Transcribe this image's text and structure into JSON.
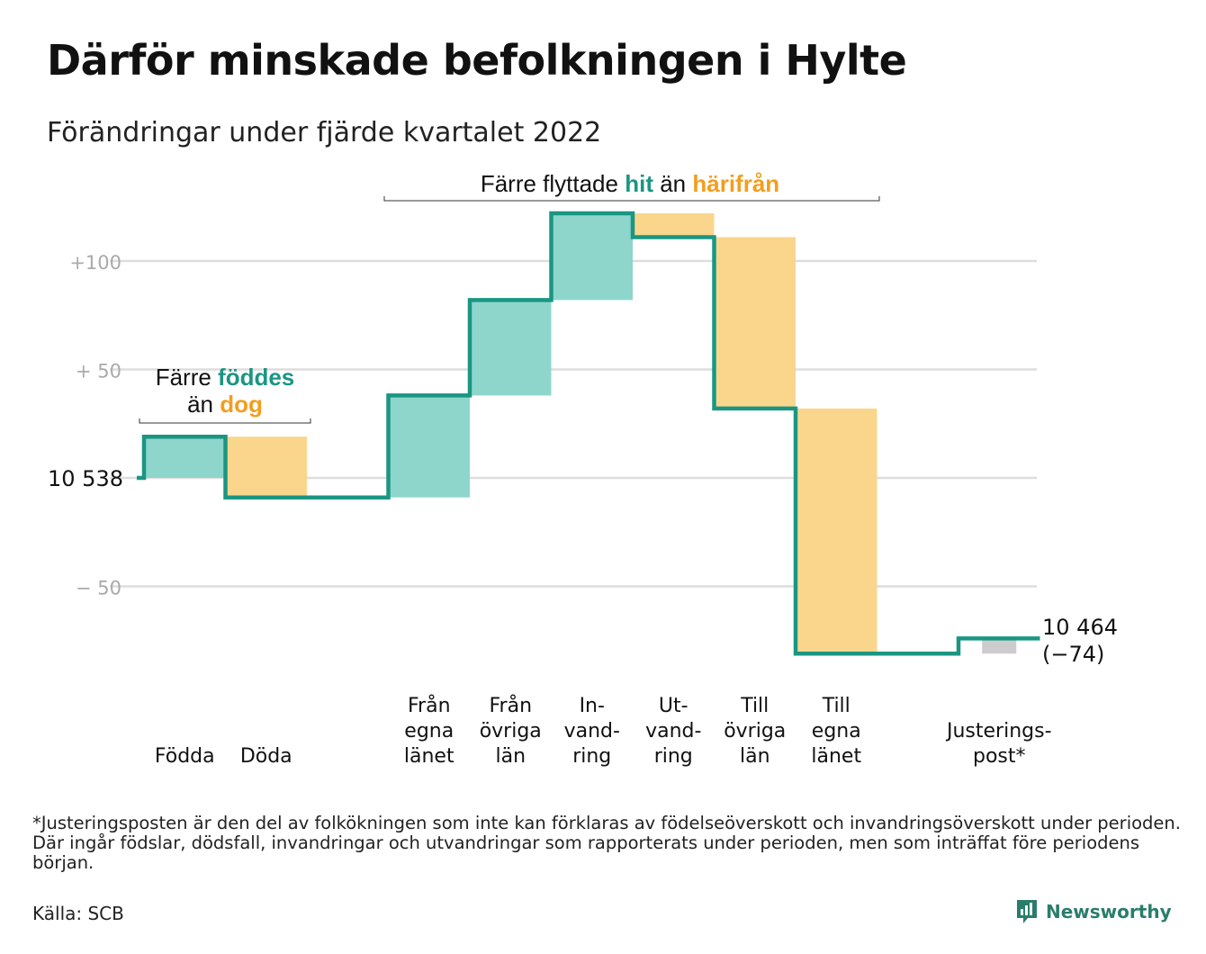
{
  "title": "Därför minskade befolkningen i Hylte",
  "subtitle": "Förändringar under fjärde kvartalet 2022",
  "colors": {
    "inflow": "#8ed6cc",
    "outflow": "#fad68c",
    "adjust": "#cccccc",
    "line": "#1a9683",
    "teal_text": "#1a9683",
    "orange_text": "#f29e1e",
    "grid": "#dddddd"
  },
  "annotations": {
    "births": {
      "pre": "Färre ",
      "teal": "föddes",
      "mid": "än ",
      "orange": "dog"
    },
    "migration": {
      "pre": "Färre flyttade ",
      "teal": "hit",
      "mid": " än ",
      "orange": "härifrån"
    }
  },
  "end_label": {
    "value": "10 464",
    "change": "(−74)"
  },
  "footnote": "*Justeringsposten är den del av folkökningen som inte kan förklaras av födelseöverskott och invandringsöverskott under perioden. Där ingår födslar, dödsfall, invandringar och utvandringar som rapporterats under perioden, men som inträffat före periodens början.",
  "source": "Källa: SCB",
  "brand": "Newsworthy",
  "chart_data": {
    "type": "waterfall",
    "start_value": 10538,
    "start_label": "10 538",
    "end_value": 10464,
    "change": -74,
    "y_ticks": [
      {
        "value": 100,
        "label": "+100"
      },
      {
        "value": 50,
        "label": "+ 50"
      },
      {
        "value": 0,
        "label": "10 538"
      },
      {
        "value": -50,
        "label": "− 50"
      }
    ],
    "ylim": [
      -95,
      125
    ],
    "grid": true,
    "steps": [
      {
        "label_lines": [
          "Födda"
        ],
        "value": 19,
        "kind": "in"
      },
      {
        "label_lines": [
          "Döda"
        ],
        "value": -28,
        "kind": "out"
      },
      {
        "label_lines": [],
        "value": 0,
        "kind": "gap"
      },
      {
        "label_lines": [
          "Från",
          "egna",
          "länet"
        ],
        "value": 47,
        "kind": "in"
      },
      {
        "label_lines": [
          "Från",
          "övriga",
          "län"
        ],
        "value": 44,
        "kind": "in"
      },
      {
        "label_lines": [
          "In-",
          "vand-",
          "ring"
        ],
        "value": 40,
        "kind": "in"
      },
      {
        "label_lines": [
          "Ut-",
          "vand-",
          "ring"
        ],
        "value": -11,
        "kind": "out"
      },
      {
        "label_lines": [
          "Till",
          "övriga",
          "län"
        ],
        "value": -79,
        "kind": "out"
      },
      {
        "label_lines": [
          "Till",
          "egna",
          "länet"
        ],
        "value": -113,
        "kind": "out"
      },
      {
        "label_lines": [],
        "value": 0,
        "kind": "gap"
      },
      {
        "label_lines": [
          "Justerings-",
          "post*"
        ],
        "value": 7,
        "kind": "adjust"
      }
    ]
  }
}
